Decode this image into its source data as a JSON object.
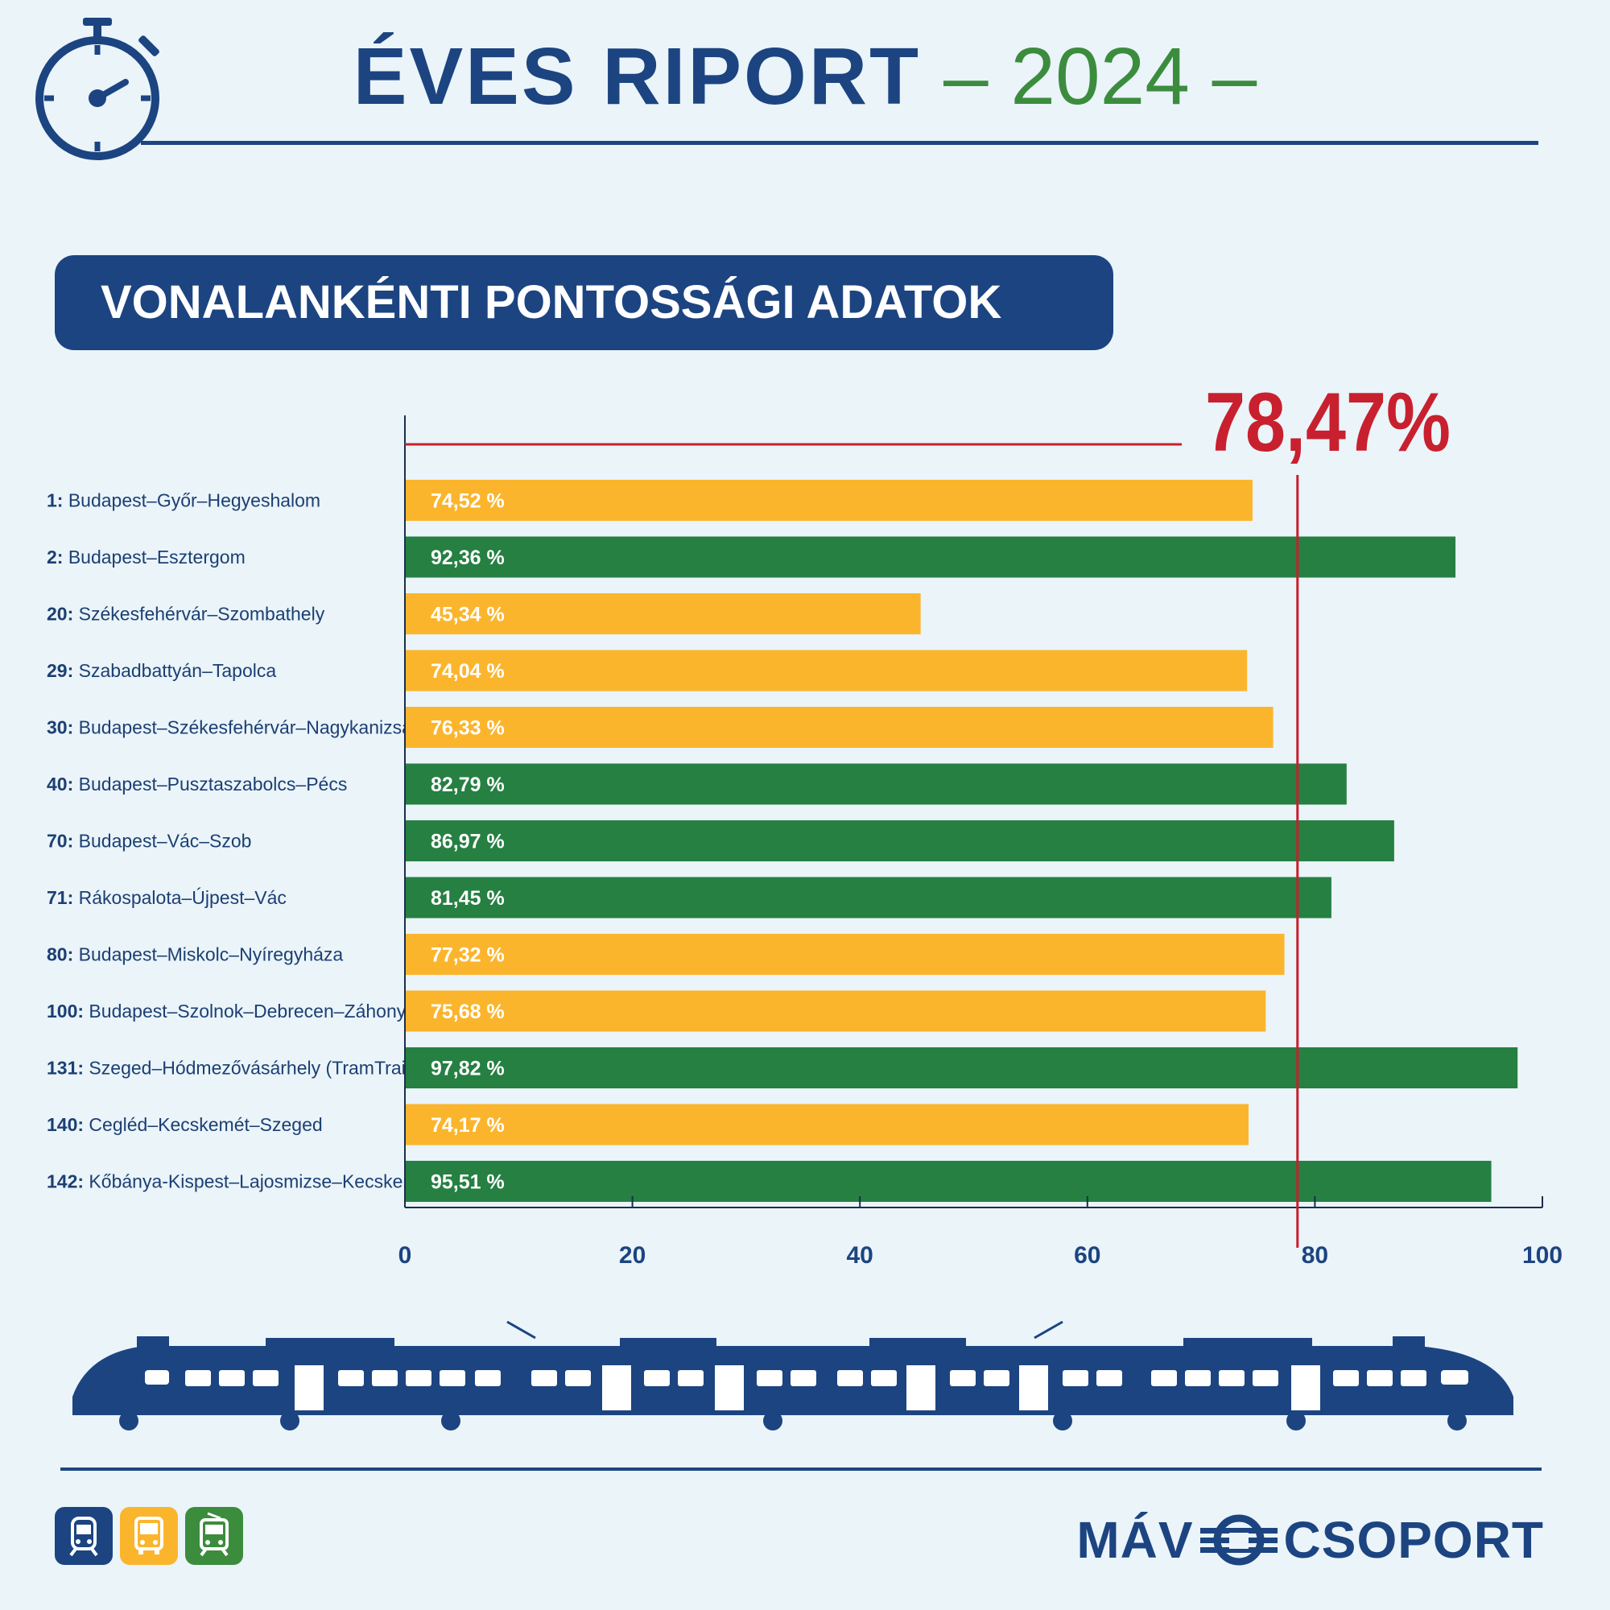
{
  "header": {
    "title": "ÉVES RIPORT",
    "year_text": "– 2024 –"
  },
  "section": {
    "title": "VONALANKÉNTI PONTOSSÁGI ADATOK"
  },
  "logo": {
    "left_text": "MÁV",
    "right_text": "CSOPORT"
  },
  "icons": {
    "stopwatch": "stopwatch-icon",
    "train": "train-illustration",
    "modes": [
      "train-icon",
      "bus-icon",
      "tram-icon"
    ]
  },
  "colors": {
    "navy": "#1c4481",
    "below_average": "#fbb52d",
    "above_average": "#258042",
    "average_line": "#c8202e",
    "year_green": "#3c8c3e"
  },
  "chart_data": {
    "type": "bar",
    "orientation": "horizontal",
    "categories": [
      {
        "number": "1:",
        "name": "Budapest–Győr–Hegyeshalom"
      },
      {
        "number": "2:",
        "name": "Budapest–Esztergom"
      },
      {
        "number": "20:",
        "name": "Székesfehérvár–Szombathely"
      },
      {
        "number": "29:",
        "name": "Szabadbattyán–Tapolca"
      },
      {
        "number": "30:",
        "name": "Budapest–Székesfehérvár–Nagykanizsa"
      },
      {
        "number": "40:",
        "name": "Budapest–Pusztaszabolcs–Pécs"
      },
      {
        "number": "70:",
        "name": "Budapest–Vác–Szob"
      },
      {
        "number": "71:",
        "name": "Rákospalota–Újpest–Vác"
      },
      {
        "number": "80:",
        "name": "Budapest–Miskolc–Nyíregyháza"
      },
      {
        "number": "100:",
        "name": "Budapest–Szolnok–Debrecen–Záhony"
      },
      {
        "number": "131:",
        "name": "Szeged–Hódmezővásárhely (TramTrain)"
      },
      {
        "number": "140:",
        "name": "Cegléd–Kecskemét–Szeged"
      },
      {
        "number": "142:",
        "name": "Kőbánya-Kispest–Lajosmizse–Kecskemét"
      }
    ],
    "values": [
      74.52,
      92.36,
      45.34,
      74.04,
      76.33,
      82.79,
      86.97,
      81.45,
      77.32,
      75.68,
      97.82,
      74.17,
      95.51
    ],
    "value_labels": [
      "74,52 %",
      "92,36 %",
      "45,34 %",
      "74,04 %",
      "76,33 %",
      "82,79 %",
      "86,97 %",
      "81,45 %",
      "77,32 %",
      "75,68 %",
      "97,82 %",
      "74,17 %",
      "95,51 %"
    ],
    "average": 78.47,
    "average_label": "78,47%",
    "xlim": [
      0,
      100
    ],
    "xticks": [
      0,
      20,
      40,
      60,
      80,
      100
    ],
    "grid": false
  }
}
